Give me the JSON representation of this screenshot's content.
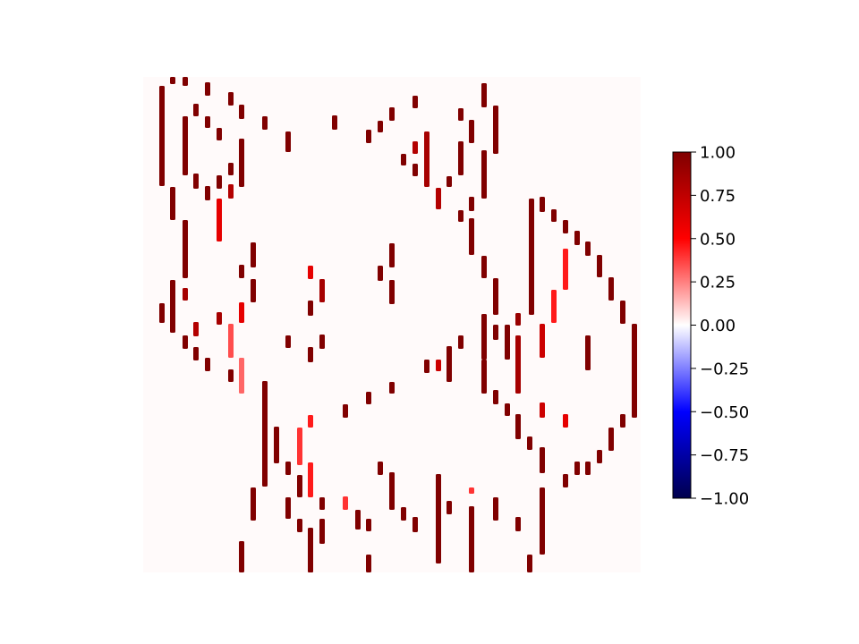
{
  "chart_data": {
    "type": "heatmap",
    "title": "",
    "xlabel": "",
    "ylabel": "",
    "axes_visible": false,
    "colormap": "seismic",
    "color_range": [
      -1.0,
      1.0
    ],
    "colorbar": {
      "placement": "right",
      "ticks": [
        1.0,
        0.75,
        0.5,
        0.25,
        0.0,
        -0.25,
        -0.5,
        -0.75,
        -1.0
      ],
      "tick_labels": [
        "1.00",
        "0.75",
        "0.50",
        "0.25",
        "0.00",
        "−0.25",
        "−0.50",
        "−0.75",
        "−1.00"
      ]
    },
    "background_value": 0.01,
    "marks_description": "sparse short vertical streaks of positive values forming a doodle-like outline",
    "marks": [
      [
        181,
        96,
        208,
        1.0
      ],
      [
        193,
        86,
        94,
        1.0
      ],
      [
        207,
        86,
        96,
        1.0
      ],
      [
        232,
        92,
        107,
        1.0
      ],
      [
        258,
        103,
        118,
        1.0
      ],
      [
        219,
        116,
        130,
        1.0
      ],
      [
        232,
        130,
        143,
        1.0
      ],
      [
        245,
        143,
        157,
        1.0
      ],
      [
        270,
        117,
        133,
        1.0
      ],
      [
        207,
        130,
        196,
        1.0
      ],
      [
        270,
        155,
        170,
        1.0
      ],
      [
        258,
        182,
        196,
        1.0
      ],
      [
        270,
        156,
        209,
        1.0
      ],
      [
        219,
        194,
        211,
        1.0
      ],
      [
        232,
        208,
        224,
        1.0
      ],
      [
        245,
        196,
        211,
        1.0
      ],
      [
        258,
        206,
        222,
        0.8
      ],
      [
        245,
        222,
        270,
        0.6
      ],
      [
        193,
        209,
        246,
        1.0
      ],
      [
        207,
        246,
        311,
        1.0
      ],
      [
        193,
        313,
        372,
        1.0
      ],
      [
        181,
        339,
        361,
        1.0
      ],
      [
        207,
        322,
        336,
        0.85
      ],
      [
        219,
        360,
        376,
        0.8
      ],
      [
        207,
        375,
        390,
        1.0
      ],
      [
        219,
        388,
        403,
        1.0
      ],
      [
        232,
        400,
        415,
        1.0
      ],
      [
        245,
        349,
        363,
        0.85
      ],
      [
        270,
        338,
        361,
        0.6
      ],
      [
        258,
        362,
        400,
        0.35
      ],
      [
        258,
        413,
        427,
        1.0
      ],
      [
        270,
        400,
        440,
        0.3
      ],
      [
        270,
        296,
        311,
        1.0
      ],
      [
        283,
        271,
        299,
        1.0
      ],
      [
        283,
        312,
        338,
        1.0
      ],
      [
        296,
        130,
        145,
        1.0
      ],
      [
        322,
        147,
        170,
        1.0
      ],
      [
        374,
        129,
        145,
        1.0
      ],
      [
        412,
        145,
        160,
        1.0
      ],
      [
        425,
        135,
        148,
        1.0
      ],
      [
        438,
        120,
        135,
        1.0
      ],
      [
        464,
        107,
        121,
        1.0
      ],
      [
        464,
        158,
        172,
        0.8
      ],
      [
        451,
        172,
        185,
        1.0
      ],
      [
        477,
        147,
        209,
        0.85
      ],
      [
        464,
        183,
        197,
        1.0
      ],
      [
        490,
        210,
        234,
        0.8
      ],
      [
        502,
        197,
        209,
        1.0
      ],
      [
        515,
        121,
        135,
        1.0
      ],
      [
        527,
        134,
        160,
        1.0
      ],
      [
        515,
        158,
        196,
        1.0
      ],
      [
        541,
        93,
        120,
        1.0
      ],
      [
        554,
        118,
        172,
        1.0
      ],
      [
        541,
        168,
        222,
        1.0
      ],
      [
        515,
        235,
        248,
        1.0
      ],
      [
        527,
        220,
        236,
        1.0
      ],
      [
        527,
        244,
        285,
        1.0
      ],
      [
        541,
        286,
        311,
        1.0
      ],
      [
        554,
        311,
        352,
        1.0
      ],
      [
        541,
        351,
        402,
        1.0
      ],
      [
        554,
        363,
        380,
        1.0
      ],
      [
        567,
        363,
        390,
        1.0
      ],
      [
        579,
        350,
        364,
        0.9
      ],
      [
        579,
        375,
        440,
        0.85
      ],
      [
        567,
        388,
        402,
        1.0
      ],
      [
        541,
        402,
        440,
        1.0
      ],
      [
        554,
        436,
        452,
        1.0
      ],
      [
        567,
        451,
        465,
        1.0
      ],
      [
        579,
        463,
        491,
        1.0
      ],
      [
        592,
        488,
        503,
        1.0
      ],
      [
        606,
        500,
        529,
        1.0
      ],
      [
        594,
        222,
        352,
        1.0
      ],
      [
        606,
        220,
        237,
        1.0
      ],
      [
        619,
        234,
        248,
        1.0
      ],
      [
        632,
        246,
        261,
        1.0
      ],
      [
        645,
        258,
        274,
        1.0
      ],
      [
        657,
        270,
        286,
        1.0
      ],
      [
        670,
        285,
        310,
        1.0
      ],
      [
        683,
        310,
        336,
        1.0
      ],
      [
        696,
        336,
        362,
        1.0
      ],
      [
        709,
        362,
        467,
        1.0
      ],
      [
        696,
        463,
        478,
        1.0
      ],
      [
        683,
        478,
        504,
        1.0
      ],
      [
        670,
        503,
        518,
        1.0
      ],
      [
        657,
        516,
        531,
        1.0
      ],
      [
        645,
        516,
        531,
        1.0
      ],
      [
        632,
        530,
        545,
        1.0
      ],
      [
        632,
        278,
        324,
        0.45
      ],
      [
        619,
        324,
        361,
        0.45
      ],
      [
        606,
        362,
        400,
        0.7
      ],
      [
        606,
        450,
        467,
        0.7
      ],
      [
        657,
        375,
        414,
        1.0
      ],
      [
        632,
        463,
        478,
        0.6
      ],
      [
        347,
        297,
        312,
        0.6
      ],
      [
        347,
        336,
        353,
        1.0
      ],
      [
        360,
        312,
        338,
        0.85
      ],
      [
        347,
        388,
        405,
        1.0
      ],
      [
        360,
        374,
        390,
        1.0
      ],
      [
        322,
        375,
        389,
        1.0
      ],
      [
        425,
        297,
        314,
        1.0
      ],
      [
        438,
        272,
        299,
        1.0
      ],
      [
        438,
        313,
        340,
        1.0
      ],
      [
        296,
        426,
        544,
        1.0
      ],
      [
        309,
        477,
        518,
        1.0
      ],
      [
        322,
        516,
        531,
        1.0
      ],
      [
        335,
        478,
        520,
        0.4
      ],
      [
        335,
        531,
        556,
        1.0
      ],
      [
        347,
        464,
        478,
        0.45
      ],
      [
        347,
        517,
        556,
        0.45
      ],
      [
        322,
        556,
        580,
        1.0
      ],
      [
        335,
        580,
        595,
        1.0
      ],
      [
        347,
        595,
        640,
        1.0
      ],
      [
        360,
        580,
        608,
        1.0
      ],
      [
        360,
        556,
        570,
        1.0
      ],
      [
        386,
        452,
        467,
        1.0
      ],
      [
        412,
        438,
        452,
        1.0
      ],
      [
        438,
        427,
        440,
        1.0
      ],
      [
        477,
        402,
        417,
        1.0
      ],
      [
        490,
        402,
        415,
        0.7
      ],
      [
        502,
        387,
        427,
        1.0
      ],
      [
        515,
        375,
        390,
        1.0
      ],
      [
        425,
        516,
        531,
        1.0
      ],
      [
        438,
        528,
        570,
        1.0
      ],
      [
        451,
        567,
        582,
        1.0
      ],
      [
        464,
        578,
        595,
        1.0
      ],
      [
        490,
        530,
        630,
        1.0
      ],
      [
        502,
        560,
        575,
        1.0
      ],
      [
        527,
        545,
        552,
        0.4
      ],
      [
        527,
        566,
        640,
        1.0
      ],
      [
        554,
        556,
        582,
        1.0
      ],
      [
        579,
        578,
        594,
        1.0
      ],
      [
        592,
        620,
        640,
        1.0
      ],
      [
        606,
        545,
        620,
        1.0
      ],
      [
        386,
        555,
        570,
        0.4
      ],
      [
        400,
        570,
        592,
        1.0
      ],
      [
        412,
        580,
        594,
        1.0
      ],
      [
        412,
        620,
        640,
        1.0
      ],
      [
        283,
        545,
        582,
        1.0
      ],
      [
        270,
        605,
        640,
        1.0
      ],
      [
        347,
        590,
        640,
        1.0
      ]
    ]
  }
}
